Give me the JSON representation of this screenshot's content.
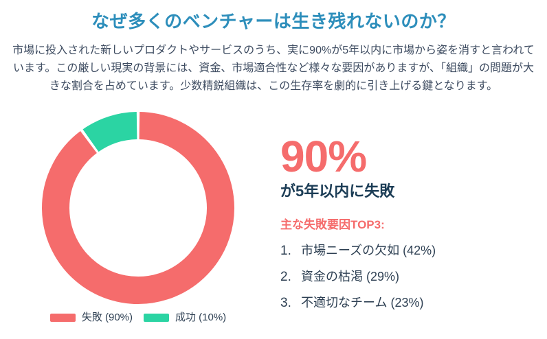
{
  "title": "なぜ多くのベンチャーは生き残れないのか？",
  "intro": "市場に投入された新しいプロダクトやサービスのうち、実に90%が5年以内に市場から姿を消すと言われています。この厳しい現実の背景には、資金、市場適合性など様々な要因がありますが、「組織」の問題が大きな割合を占めています。少数精鋭組織は、この生存率を劇的に引き上げる鍵となります。",
  "stat": {
    "number": "90%",
    "label": "が5年以内に失敗"
  },
  "reasons": {
    "heading": "主な失敗要因TOP3:",
    "items": [
      {
        "rank": "1.",
        "label": "市場ニーズの欠如 (42%)"
      },
      {
        "rank": "2.",
        "label": "資金の枯渇 (29%)"
      },
      {
        "rank": "3.",
        "label": "不適切なチーム (23%)"
      }
    ]
  },
  "legend": [
    {
      "label": "失敗 (90%)",
      "color": "#F56C6C"
    },
    {
      "label": "成功 (10%)",
      "color": "#2BD4A3"
    }
  ],
  "colors": {
    "accent_red": "#F56C6C",
    "accent_green": "#2BD4A3",
    "title_blue": "#2D8EBB",
    "text_dark": "#1C3D56",
    "text_body": "#3E4C61"
  },
  "chart_data": {
    "type": "pie",
    "variant": "donut",
    "title": "",
    "labels": [
      "失敗",
      "成功"
    ],
    "values": [
      90,
      10
    ],
    "colors": [
      "#F56C6C",
      "#2BD4A3"
    ],
    "cutout_percent": 72,
    "start_angle_deg": -90,
    "direction": "clockwise",
    "segment_gap_deg": 1.8,
    "legend_position": "bottom",
    "legend_labels": [
      "失敗 (90%)",
      "成功 (10%)"
    ]
  }
}
